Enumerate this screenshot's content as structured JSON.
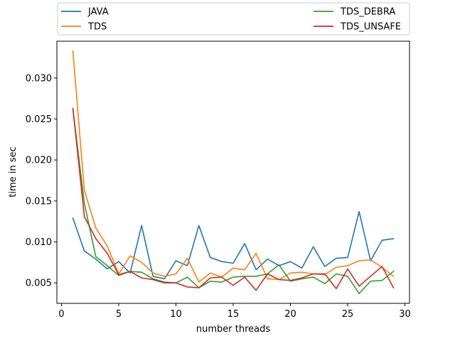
{
  "chart_data": {
    "type": "line",
    "title": "",
    "xlabel": "number threads",
    "ylabel": "time in sec",
    "xlim": [
      -0.4,
      30.4
    ],
    "ylim": [
      0.0025,
      0.0345
    ],
    "xticks": [
      0,
      5,
      10,
      15,
      20,
      25,
      30
    ],
    "yticks": [
      0.005,
      0.01,
      0.015,
      0.02,
      0.025,
      0.03
    ],
    "ytick_labels": [
      "0.005",
      "0.010",
      "0.015",
      "0.020",
      "0.025",
      "0.030"
    ],
    "legend_placement": "above plot, two columns",
    "grid": false,
    "x": [
      1,
      2,
      3,
      4,
      5,
      6,
      7,
      8,
      9,
      10,
      11,
      12,
      13,
      14,
      15,
      16,
      17,
      18,
      19,
      20,
      21,
      22,
      23,
      24,
      25,
      26,
      27,
      28,
      29
    ],
    "series": [
      {
        "name": "JAVA",
        "color": "#1f77b4",
        "values": [
          0.0129,
          0.0089,
          0.0079,
          0.0067,
          0.0076,
          0.0062,
          0.012,
          0.0058,
          0.0055,
          0.0077,
          0.0071,
          0.012,
          0.0081,
          0.0076,
          0.0074,
          0.0098,
          0.0066,
          0.0079,
          0.0071,
          0.0076,
          0.0068,
          0.0094,
          0.007,
          0.008,
          0.0081,
          0.0137,
          0.0077,
          0.0102,
          0.0104
        ]
      },
      {
        "name": "TDS",
        "color": "#ff7f0e",
        "values": [
          0.0333,
          0.0163,
          0.0117,
          0.0095,
          0.0061,
          0.0083,
          0.0075,
          0.0062,
          0.0058,
          0.0061,
          0.008,
          0.0051,
          0.0062,
          0.0057,
          0.0068,
          0.0066,
          0.0086,
          0.0055,
          0.0054,
          0.0062,
          0.0063,
          0.0061,
          0.006,
          0.0069,
          0.0071,
          0.0077,
          0.0078,
          0.0069,
          0.0058
        ]
      },
      {
        "name": "TDS_DEBRA",
        "color": "#2ca02c",
        "values": [
          0.0262,
          0.0147,
          0.0082,
          0.0071,
          0.0059,
          0.0064,
          0.0063,
          0.0055,
          0.0051,
          0.005,
          0.0057,
          0.0044,
          0.0052,
          0.0051,
          0.0057,
          0.0058,
          0.0058,
          0.0061,
          0.0072,
          0.0052,
          0.0055,
          0.0057,
          0.0049,
          0.0061,
          0.0058,
          0.0037,
          0.0052,
          0.0053,
          0.0064
        ]
      },
      {
        "name": "TDS_UNSAFE",
        "color": "#d62728",
        "values": [
          0.0263,
          0.0131,
          0.0104,
          0.0086,
          0.006,
          0.0064,
          0.0056,
          0.0054,
          0.005,
          0.005,
          0.0045,
          0.0044,
          0.0056,
          0.0057,
          0.0047,
          0.0057,
          0.0041,
          0.0061,
          0.0054,
          0.0053,
          0.0056,
          0.0061,
          0.0061,
          0.0043,
          0.0067,
          0.0046,
          0.0058,
          0.007,
          0.0044
        ]
      }
    ]
  }
}
